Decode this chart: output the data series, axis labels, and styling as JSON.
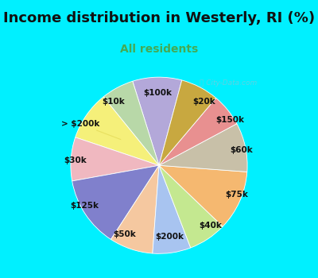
{
  "title": "Income distribution in Westerly, RI (%)",
  "subtitle": "All residents",
  "labels": [
    "$100k",
    "$10k",
    "> $200k",
    "$30k",
    "$125k",
    "$50k",
    "$200k",
    "$40k",
    "$75k",
    "$60k",
    "$150k",
    "$20k"
  ],
  "values": [
    9,
    6,
    9,
    8,
    13,
    8,
    7,
    7,
    11,
    9,
    6,
    7
  ],
  "colors": [
    "#b3a8d9",
    "#b8d8a8",
    "#f5f07a",
    "#f0b8c0",
    "#8080cc",
    "#f5c8a0",
    "#a8c4f0",
    "#c4e890",
    "#f5b870",
    "#c8c0a8",
    "#e89090",
    "#c8a840"
  ],
  "line_colors": [
    "#b3a8d9",
    "#b8d8a8",
    "#e8e060",
    "#f0b8c0",
    "#8080cc",
    "#f5c8a0",
    "#a8c4f0",
    "#c4e890",
    "#f5b870",
    "#c8c0a8",
    "#e89090",
    "#c8a840"
  ],
  "background_top": "#00f0ff",
  "background_chart": "#e0f5e8",
  "title_fontsize": 13,
  "subtitle_fontsize": 10,
  "subtitle_color": "#44aa55",
  "label_fontsize": 7.5,
  "startangle": 75,
  "watermark": "City-Data.com"
}
